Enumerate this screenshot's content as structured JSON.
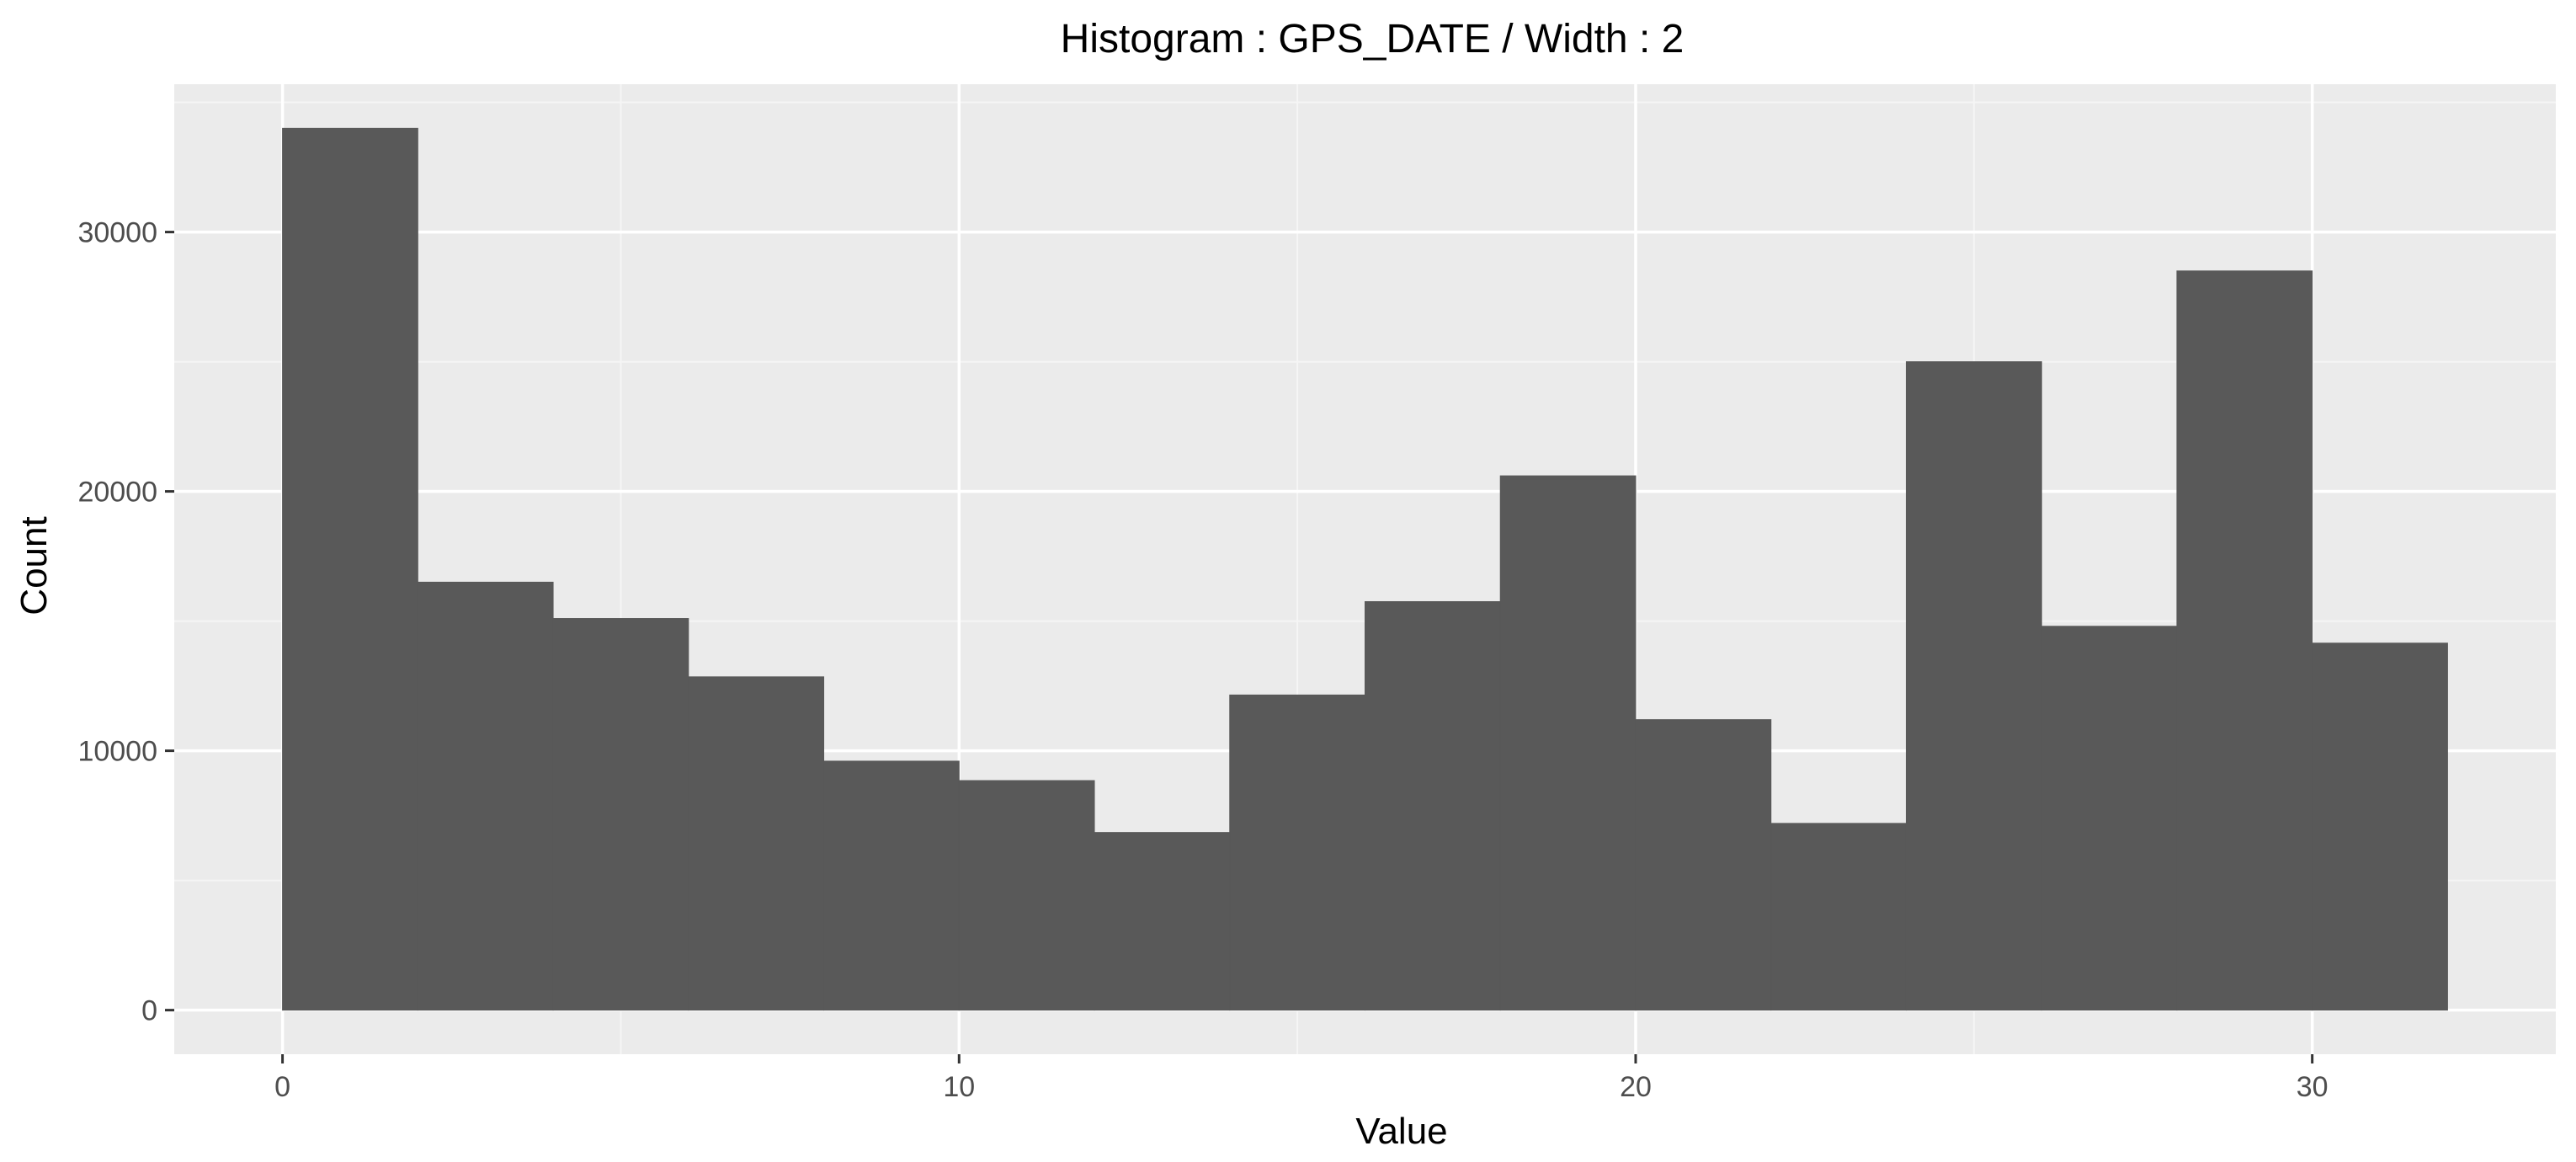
{
  "chart_data": {
    "type": "bar",
    "title": "Histogram : GPS_DATE / Width : 2",
    "xlabel": "Value",
    "ylabel": "Count",
    "bin_width": 2,
    "bins": [
      {
        "x_start": 0,
        "x_end": 2,
        "count": 34000
      },
      {
        "x_start": 2,
        "x_end": 4,
        "count": 16500
      },
      {
        "x_start": 4,
        "x_end": 6,
        "count": 15100
      },
      {
        "x_start": 6,
        "x_end": 8,
        "count": 12850
      },
      {
        "x_start": 8,
        "x_end": 10,
        "count": 9600
      },
      {
        "x_start": 10,
        "x_end": 12,
        "count": 8850
      },
      {
        "x_start": 12,
        "x_end": 14,
        "count": 6850
      },
      {
        "x_start": 14,
        "x_end": 16,
        "count": 12150
      },
      {
        "x_start": 16,
        "x_end": 18,
        "count": 15750
      },
      {
        "x_start": 18,
        "x_end": 20,
        "count": 20600
      },
      {
        "x_start": 20,
        "x_end": 22,
        "count": 11200
      },
      {
        "x_start": 22,
        "x_end": 24,
        "count": 7200
      },
      {
        "x_start": 24,
        "x_end": 26,
        "count": 25000
      },
      {
        "x_start": 26,
        "x_end": 28,
        "count": 14800
      },
      {
        "x_start": 28,
        "x_end": 30,
        "count": 28500
      },
      {
        "x_start": 30,
        "x_end": 32,
        "count": 14150
      }
    ],
    "xlim": [
      -1.6,
      33.6
    ],
    "ylim": [
      -1700,
      35700
    ],
    "x_ticks": [
      0,
      10,
      20,
      30
    ],
    "y_ticks": [
      0,
      10000,
      20000,
      30000
    ],
    "grid": true,
    "legend": "none",
    "colors": {
      "bar": "#595959",
      "panel": "#ebebeb",
      "grid_major": "#ffffff",
      "grid_minor": "#f5f5f5",
      "tick_text": "#4d4d4d"
    }
  }
}
